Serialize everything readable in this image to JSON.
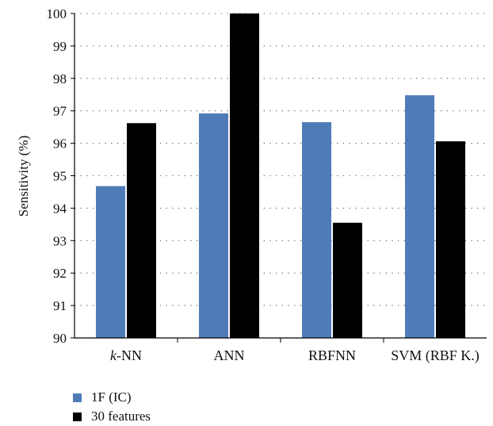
{
  "chart_data": {
    "type": "bar",
    "ylabel": "Sensitivity (%)",
    "xlabel": "",
    "ylim": [
      90,
      100
    ],
    "yticks": [
      90,
      91,
      92,
      93,
      94,
      95,
      96,
      97,
      98,
      99,
      100
    ],
    "grid": true,
    "legend_position": "bottom-left",
    "categories": [
      {
        "prefix": "k",
        "suffix": "-NN"
      },
      {
        "prefix": "",
        "suffix": "ANN"
      },
      {
        "prefix": "",
        "suffix": "RBFNN"
      },
      {
        "prefix": "",
        "suffix": "SVM (RBF K.)"
      }
    ],
    "series": [
      {
        "name": "1F (IC)",
        "color": "#4f7cb8",
        "values": [
          94.68,
          96.92,
          96.65,
          97.48
        ]
      },
      {
        "name": "30 features",
        "color": "#000000",
        "values": [
          96.62,
          100.0,
          93.55,
          96.06
        ]
      }
    ]
  }
}
